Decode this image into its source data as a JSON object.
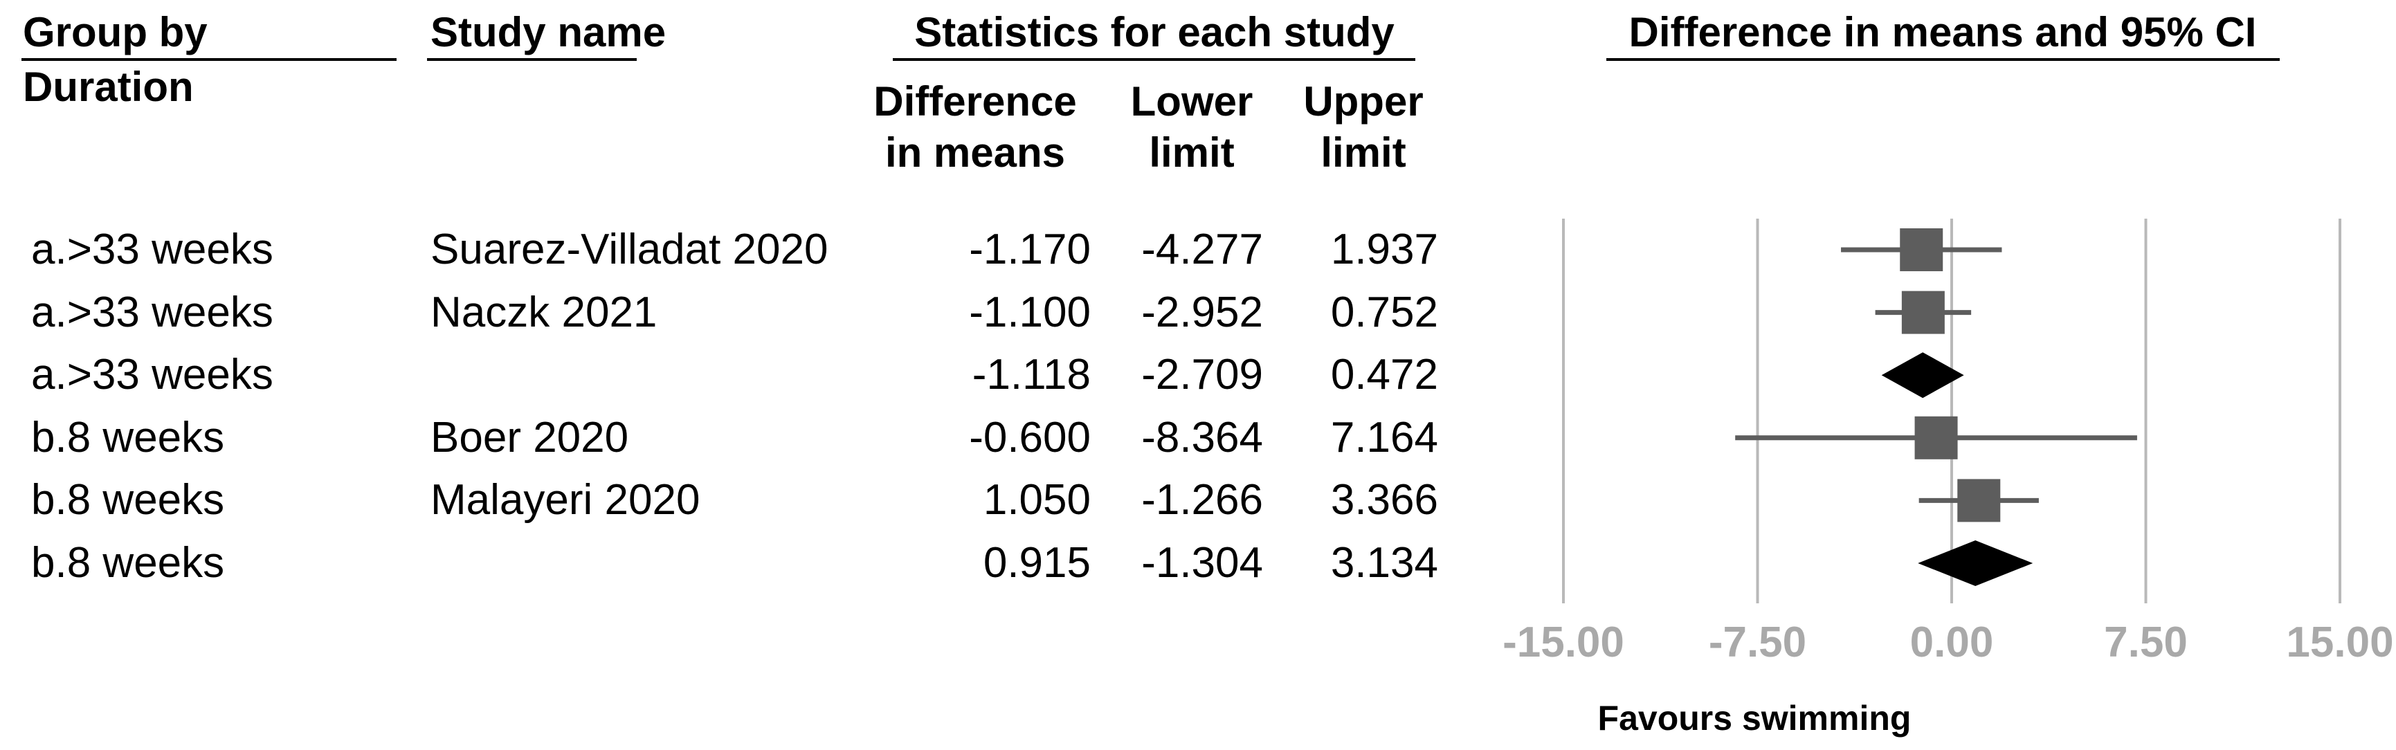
{
  "header": {
    "group_by_line1": "Group by",
    "group_by_line2": "Duration",
    "study_name": "Study name",
    "statistics": "Statistics for each study",
    "col_diff_line1": "Difference",
    "col_diff_line2": "in means",
    "col_lower_line1": "Lower",
    "col_lower_line2": "limit",
    "col_upper_line1": "Upper",
    "col_upper_line2": "limit",
    "plot_title": "Difference in means and 95% CI"
  },
  "footer": {
    "favours_label": "Favours swimming"
  },
  "colors": {
    "marker_gray": "#5d5d5d",
    "gridline_gray": "#b9b9b9",
    "axis_label_gray": "#a9a9a9",
    "diamond_black": "#000000",
    "text_black": "#000000"
  },
  "chart_data": {
    "type": "forest",
    "title": "Difference in means and 95% CI",
    "effect_measure": "Difference in means",
    "group_by_field": "Duration",
    "axis": {
      "min": -15,
      "max": 15,
      "tick_values": [
        -15,
        -7.5,
        0,
        7.5,
        15
      ],
      "tick_labels": [
        "-15.00",
        "-7.50",
        "0.00",
        "7.50",
        "15.00"
      ],
      "grid": true,
      "favours_left_label": "Favours swimming"
    },
    "rows": [
      {
        "kind": "study",
        "group": "a.>33 weeks",
        "study": "Suarez-Villadat 2020",
        "mean": -1.17,
        "lower": -4.277,
        "upper": 1.937
      },
      {
        "kind": "study",
        "group": "a.>33 weeks",
        "study": "Naczk 2021",
        "mean": -1.1,
        "lower": -2.952,
        "upper": 0.752
      },
      {
        "kind": "summary",
        "group": "a.>33 weeks",
        "study": "",
        "mean": -1.118,
        "lower": -2.709,
        "upper": 0.472
      },
      {
        "kind": "study",
        "group": "b.8 weeks",
        "study": "Boer 2020",
        "mean": -0.6,
        "lower": -8.364,
        "upper": 7.164
      },
      {
        "kind": "study",
        "group": "b.8 weeks",
        "study": "Malayeri 2020",
        "mean": 1.05,
        "lower": -1.266,
        "upper": 3.366
      },
      {
        "kind": "summary",
        "group": "b.8 weeks",
        "study": "",
        "mean": 0.915,
        "lower": -1.304,
        "upper": 3.134
      }
    ]
  }
}
